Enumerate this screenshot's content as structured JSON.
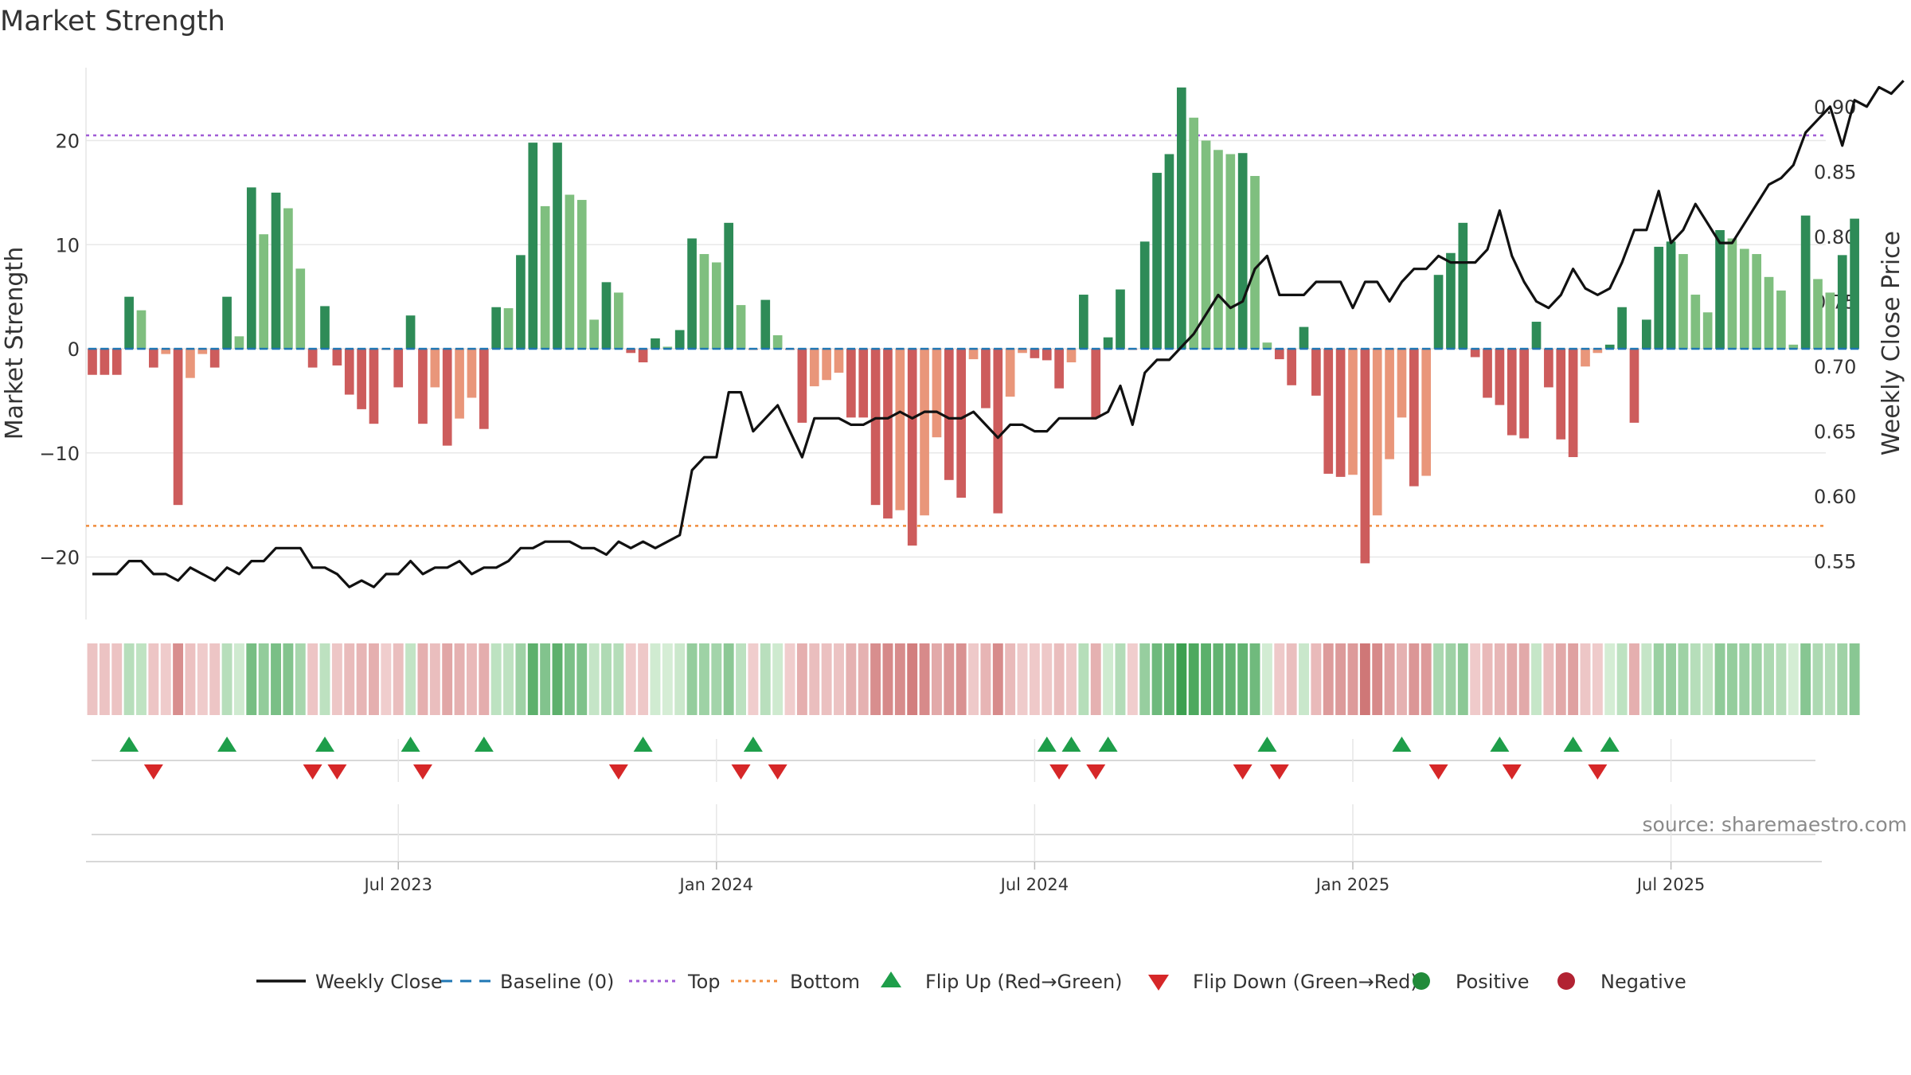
{
  "chart_data": {
    "type": "bar",
    "title": "Market Strength",
    "ylabel_left": "Market Strength",
    "ylabel_right": "Weekly Close Price",
    "source": "source: sharemaestro.com",
    "left_axis": {
      "ylim": [
        -26,
        27
      ],
      "ticks": [
        20,
        10,
        0,
        -10,
        -20
      ],
      "tick_labels": [
        "20",
        "10",
        "0",
        "−10",
        "−20"
      ]
    },
    "right_axis": {
      "ylim": [
        0.505,
        0.93
      ],
      "ticks": [
        0.55,
        0.6,
        0.65,
        0.7,
        0.75,
        0.8,
        0.85,
        0.9
      ],
      "tick_labels": [
        "0.55",
        "0.60",
        "0.65",
        "0.70",
        "0.75",
        "0.80",
        "0.85",
        "0.90"
      ]
    },
    "x_range_weeks": [
      0,
      141
    ],
    "date_ticks": [
      {
        "label": "Jul 2023",
        "week": 25
      },
      {
        "label": "Jan 2024",
        "week": 51
      },
      {
        "label": "Jul 2024",
        "week": 77
      },
      {
        "label": "Jan 2025",
        "week": 103
      },
      {
        "label": "Jul 2025",
        "week": 129
      }
    ],
    "reference_lines": [
      {
        "name": "Top",
        "value": 20.5,
        "color": "#a05bd6",
        "style": "dotted"
      },
      {
        "name": "Bottom",
        "value": -17,
        "color": "#f08c3c",
        "style": "dotted"
      },
      {
        "name": "Baseline (0)",
        "value": 0,
        "color": "#1f77b4",
        "style": "dashed"
      }
    ],
    "strength": [
      -2.5,
      -2.5,
      -2.5,
      5,
      3.7,
      -1.8,
      -0.5,
      -15,
      -2.8,
      -0.5,
      -1.8,
      5,
      1.2,
      15.5,
      11,
      15,
      13.5,
      7.7,
      -1.8,
      4.1,
      -1.6,
      -4.4,
      -5.8,
      -7.2,
      -0.1,
      -3.7,
      3.2,
      -7.2,
      -3.7,
      -9.3,
      -6.7,
      -4.7,
      -7.7,
      4,
      3.9,
      9,
      19.8,
      13.7,
      19.8,
      14.8,
      14.3,
      2.8,
      6.4,
      5.4,
      -0.4,
      -1.3,
      1,
      0.2,
      1.8,
      10.6,
      9.1,
      8.3,
      12.1,
      4.2,
      -0.1,
      4.7,
      1.3,
      -0.1,
      -7.1,
      -3.6,
      -3,
      -2.3,
      -6.6,
      -6.6,
      -15,
      -16.3,
      -15.5,
      -18.9,
      -16,
      -8.5,
      -12.6,
      -14.3,
      -1,
      -5.7,
      -15.8,
      -4.6,
      -0.4,
      -0.9,
      -1.1,
      -3.8,
      -1.3,
      5.2,
      -6.6,
      1.1,
      5.7,
      -0.1,
      10.3,
      16.9,
      18.7,
      25.1,
      22.2,
      20,
      19.1,
      18.7,
      18.8,
      16.6,
      0.6,
      -1,
      -3.5,
      2.1,
      -4.5,
      -12,
      -12.3,
      -12.1,
      -20.6,
      -16,
      -10.6,
      -6.6,
      -13.2,
      -12.2,
      7.1,
      9.2,
      12.1,
      -0.8,
      -4.7,
      -5.4,
      -8.3,
      -8.6,
      2.6,
      -3.7,
      -8.7,
      -10.4,
      -1.7,
      -0.4,
      0.4,
      4,
      -7.1,
      2.8,
      9.8,
      10.3,
      9.1,
      5.2,
      3.5,
      11.4,
      10.6,
      9.6,
      9.1,
      6.9,
      5.6,
      0.4,
      12.8,
      6.7,
      5.4,
      9,
      12.5
    ],
    "weekly_close": [
      0.54,
      0.54,
      0.54,
      0.55,
      0.55,
      0.54,
      0.54,
      0.535,
      0.545,
      0.54,
      0.535,
      0.545,
      0.54,
      0.55,
      0.55,
      0.56,
      0.56,
      0.56,
      0.545,
      0.545,
      0.54,
      0.53,
      0.535,
      0.53,
      0.54,
      0.54,
      0.55,
      0.54,
      0.545,
      0.545,
      0.55,
      0.54,
      0.545,
      0.545,
      0.55,
      0.56,
      0.56,
      0.565,
      0.565,
      0.565,
      0.56,
      0.56,
      0.555,
      0.565,
      0.56,
      0.565,
      0.56,
      0.565,
      0.57,
      0.62,
      0.63,
      0.63,
      0.68,
      0.68,
      0.65,
      0.66,
      0.67,
      0.65,
      0.63,
      0.66,
      0.66,
      0.66,
      0.655,
      0.655,
      0.66,
      0.66,
      0.665,
      0.66,
      0.665,
      0.665,
      0.66,
      0.66,
      0.665,
      0.655,
      0.645,
      0.655,
      0.655,
      0.65,
      0.65,
      0.66,
      0.66,
      0.66,
      0.66,
      0.665,
      0.685,
      0.655,
      0.695,
      0.705,
      0.705,
      0.715,
      0.725,
      0.74,
      0.755,
      0.745,
      0.75,
      0.775,
      0.785,
      0.755,
      0.755,
      0.755,
      0.765,
      0.765,
      0.765,
      0.745,
      0.765,
      0.765,
      0.75,
      0.765,
      0.775,
      0.775,
      0.785,
      0.78,
      0.78,
      0.78,
      0.79,
      0.82,
      0.785,
      0.765,
      0.75,
      0.745,
      0.755,
      0.775,
      0.76,
      0.755,
      0.76,
      0.78,
      0.805,
      0.805,
      0.835,
      0.795,
      0.805,
      0.825,
      0.81,
      0.795,
      0.795,
      0.81,
      0.825,
      0.84,
      0.845,
      0.855,
      0.88,
      0.89,
      0.9,
      0.87,
      0.905,
      0.9,
      0.915,
      0.91,
      0.92
    ],
    "flip_up_weeks": [
      3,
      11,
      19,
      26,
      32,
      45,
      54,
      78,
      80,
      83,
      96,
      107,
      115,
      121,
      124
    ],
    "flip_down_weeks": [
      5,
      18,
      20,
      27,
      43,
      53,
      56,
      79,
      82,
      94,
      97,
      110,
      116,
      123
    ],
    "legend": [
      {
        "label": "Weekly Close",
        "symbol": "solid-line",
        "color": "#111111"
      },
      {
        "label": "Baseline (0)",
        "symbol": "dashed-line",
        "color": "#1f77b4"
      },
      {
        "label": "Top",
        "symbol": "dotted-line",
        "color": "#a05bd6"
      },
      {
        "label": "Bottom",
        "symbol": "dotted-line",
        "color": "#f08c3c"
      },
      {
        "label": "Flip Up (Red→Green)",
        "symbol": "triangle-up",
        "color": "#1e9e4a"
      },
      {
        "label": "Flip Down (Green→Red)",
        "symbol": "triangle-down",
        "color": "#d62728"
      },
      {
        "label": "Positive",
        "symbol": "circle",
        "color": "#228b3a"
      },
      {
        "label": "Negative",
        "symbol": "circle",
        "color": "#b22232"
      }
    ],
    "colors": {
      "strong_positive": "#2e8b57",
      "weak_positive": "#7fbf7f",
      "strong_negative": "#cd5c5c",
      "weak_negative": "#e9967a",
      "close_line": "#111111",
      "grid": "#e8e8e8"
    }
  }
}
